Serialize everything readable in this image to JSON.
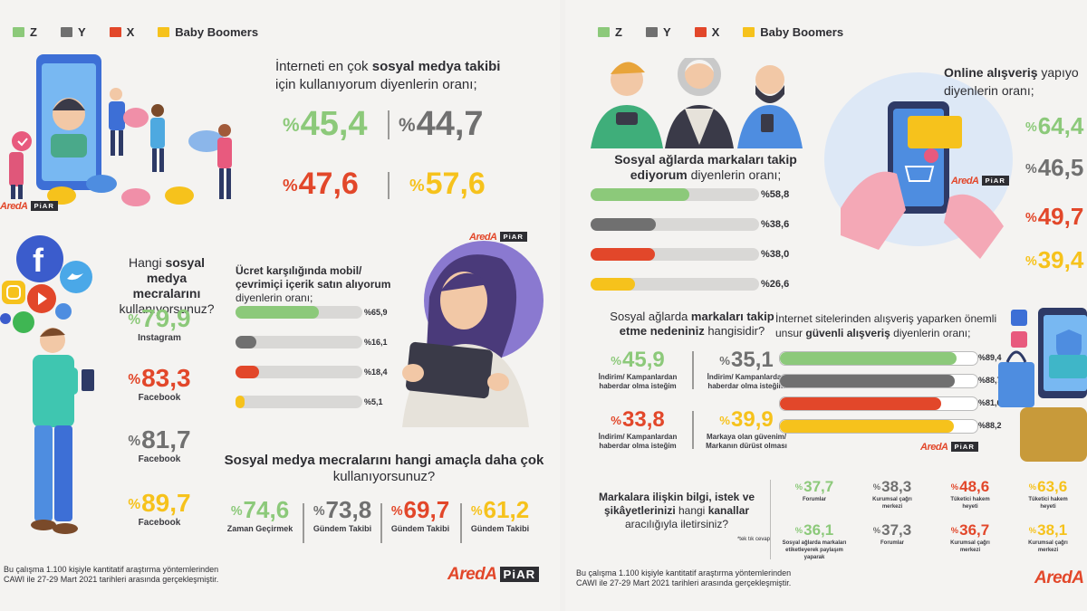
{
  "colors": {
    "z": "#8cc97a",
    "y": "#707070",
    "x": "#e2472a",
    "bb": "#f6c21c"
  },
  "legend": {
    "z": "Z",
    "y": "Y",
    "x": "X",
    "bb": "Baby Boomers"
  },
  "brand": {
    "aredaLeft": "AredA",
    "piarLeft": "PiAR",
    "aredaRight": "AredA",
    "piarRight": "PiAR",
    "small1": "AredA",
    "small1p": "PiAR",
    "small2": "AredA",
    "small2p": "PiAR",
    "small3": "AredA",
    "small3p": "PiAR",
    "small4": "AredA"
  },
  "left": {
    "internet_q": {
      "l1a": "İnterneti en çok ",
      "l1b": "sosyal medya takibi",
      "l2": "için kullanıyorum diyenlerin oranı;"
    },
    "internet_vals": {
      "z": "45,4",
      "y": "44,7",
      "x": "47,6",
      "bb": "57,6"
    },
    "platforms_q": {
      "l1a": "Hangi ",
      "l1b": "sosyal",
      "l2": "medya mecralarını",
      "l3": "kullanıyorsunuz?"
    },
    "platforms": [
      {
        "value": "79,9",
        "label": "Instagram"
      },
      {
        "value": "83,3",
        "label": "Facebook"
      },
      {
        "value": "81,7",
        "label": "Facebook"
      },
      {
        "value": "89,7",
        "label": "Facebook"
      }
    ],
    "paid_q": {
      "l1": "Ücret karşılığında mobil/",
      "l2": "çevrimiçi içerik satın alıyorum",
      "l3": "diyenlerin oranı;"
    },
    "paid": [
      {
        "text": "%65,9",
        "value": 65.9
      },
      {
        "text": "%16,1",
        "value": 16.1
      },
      {
        "text": "%18,4",
        "value": 18.4
      },
      {
        "text": "%5,1",
        "value": 5.1
      }
    ],
    "purpose_q": {
      "l1": "Sosyal medya mecralarını hangi amaçla daha çok",
      "l2": "kullanıyorsunuz?"
    },
    "purpose": [
      {
        "value": "74,6",
        "label": "Zaman Geçirmek"
      },
      {
        "value": "73,8",
        "label": "Gündem Takibi"
      },
      {
        "value": "69,7",
        "label": "Gündem Takibi"
      },
      {
        "value": "61,2",
        "label": "Gündem Takibi"
      }
    ],
    "footnote": {
      "l1": "Bu çalışma 1.100 kişiyle kantitatif araştırma yöntemlerinden",
      "l2": "CAWI ile 27-29 Mart 2021 tarihleri arasında gerçekleşmiştir."
    }
  },
  "right": {
    "follow_q": {
      "l1": "Sosyal ağlarda markaları takip",
      "l2a": "ediyorum",
      "l2b": " diyenlerin oranı;"
    },
    "follow": [
      {
        "text": "%58,8",
        "value": 58.8
      },
      {
        "text": "%38,6",
        "value": 38.6
      },
      {
        "text": "%38,0",
        "value": 38.0
      },
      {
        "text": "%26,6",
        "value": 26.6
      }
    ],
    "online_q": {
      "l1a": "Online alışveriş",
      "l1b": " yapıyo",
      "l2": "diyenlerin oranı;"
    },
    "online_vals": [
      "64,4",
      "46,5",
      "49,7",
      "39,4"
    ],
    "reason_q": {
      "l1a": "Sosyal ağlarda ",
      "l1b": "markaları takip",
      "l2a": "etme nedeniniz",
      "l2b": " hangisidir?"
    },
    "reasons": [
      {
        "value": "45,9",
        "l1": "İndirim/ Kampanlardan",
        "l2": "haberdar olma isteğim"
      },
      {
        "value": "35,1",
        "l1": "İndirim/ Kampanlardan",
        "l2": "haberdar olma isteğim"
      },
      {
        "value": "33,8",
        "l1": "İndirim/ Kampanlardan",
        "l2": "haberdar olma isteğim"
      },
      {
        "value": "39,9",
        "l1": "Markaya olan güvenim/",
        "l2": "Markanın dürüst olması"
      }
    ],
    "secure_q": {
      "l1": "İnternet sitelerinden alışveriş yaparken önemli",
      "l2a": "unsur ",
      "l2b": "güvenli alışveriş",
      "l2c": " diyenlerin oranı;"
    },
    "secure": [
      {
        "text": "%89,4",
        "value": 89.4
      },
      {
        "text": "%88,7",
        "value": 88.7
      },
      {
        "text": "%81,6",
        "value": 81.6
      },
      {
        "text": "%88,2",
        "value": 88.2
      }
    ],
    "channel_q": {
      "l1": "Markalara ilişkin bilgi, istek ve",
      "l2a": "şikâyetlerinizi",
      "l2b": " hangi ",
      "l2c": "kanallar",
      "l3": "aracılığıyla iletirsiniz?",
      "note": "*tek tık cevap"
    },
    "channels": [
      {
        "value": "37,7",
        "l1": "Forumlar",
        "l2": ""
      },
      {
        "value": "38,3",
        "l1": "Kurumsal çağrı",
        "l2": "merkezi"
      },
      {
        "value": "48,6",
        "l1": "Tüketici hakem",
        "l2": "heyeti"
      },
      {
        "value": "63,6",
        "l1": "Tüketici hakem",
        "l2": "heyeti"
      },
      {
        "value": "36,1",
        "l1": "Sosyal ağlarda markaları",
        "l2": "etiketleyerek paylaşım yaparak"
      },
      {
        "value": "37,3",
        "l1": "Forumlar",
        "l2": ""
      },
      {
        "value": "36,7",
        "l1": "Kurumsal çağrı",
        "l2": "merkezi"
      },
      {
        "value": "38,1",
        "l1": "Kurumsal çağrı",
        "l2": "merkezi"
      }
    ],
    "footnote": {
      "l1": "Bu çalışma 1.100 kişiyle kantitatif araştırma yöntemlerinden",
      "l2": "CAWI ile 27-29 Mart 2021 tarihleri arasında gerçekleşmiştir."
    }
  }
}
